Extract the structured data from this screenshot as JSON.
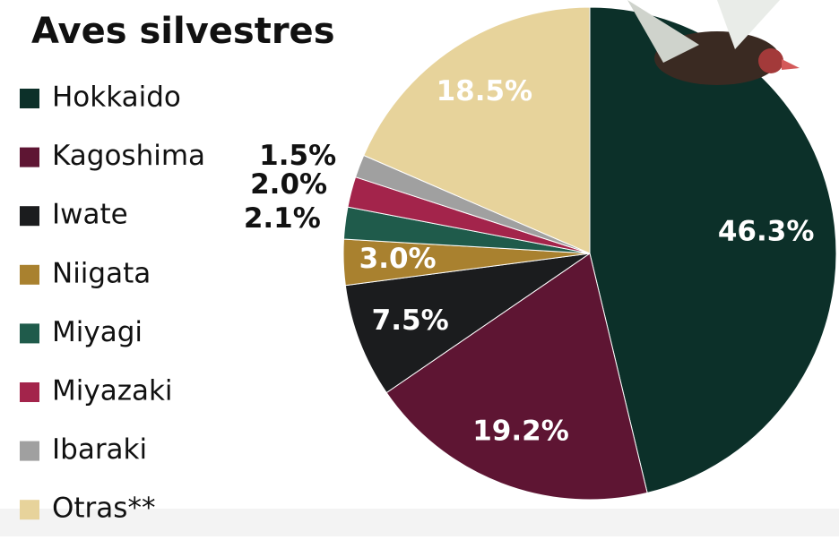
{
  "chart_data": {
    "type": "pie",
    "title": "Aves silvestres",
    "categories": [
      "Hokkaido",
      "Kagoshima",
      "Iwate",
      "Niigata",
      "Miyagi",
      "Miyazaki",
      "Ibaraki",
      "Otras**"
    ],
    "values": [
      46.3,
      19.2,
      7.5,
      3.0,
      2.1,
      2.0,
      1.5,
      18.5
    ],
    "value_labels": [
      "46.3%",
      "19.2%",
      "7.5%",
      "3.0%",
      "2.1%",
      "2.0%",
      "1.5%",
      "18.5%"
    ],
    "colors": [
      "#0c3029",
      "#5e1533",
      "#1b1c1e",
      "#a9812f",
      "#1f5b4b",
      "#a3244b",
      "#a0a0a0",
      "#e7d39b"
    ]
  }
}
